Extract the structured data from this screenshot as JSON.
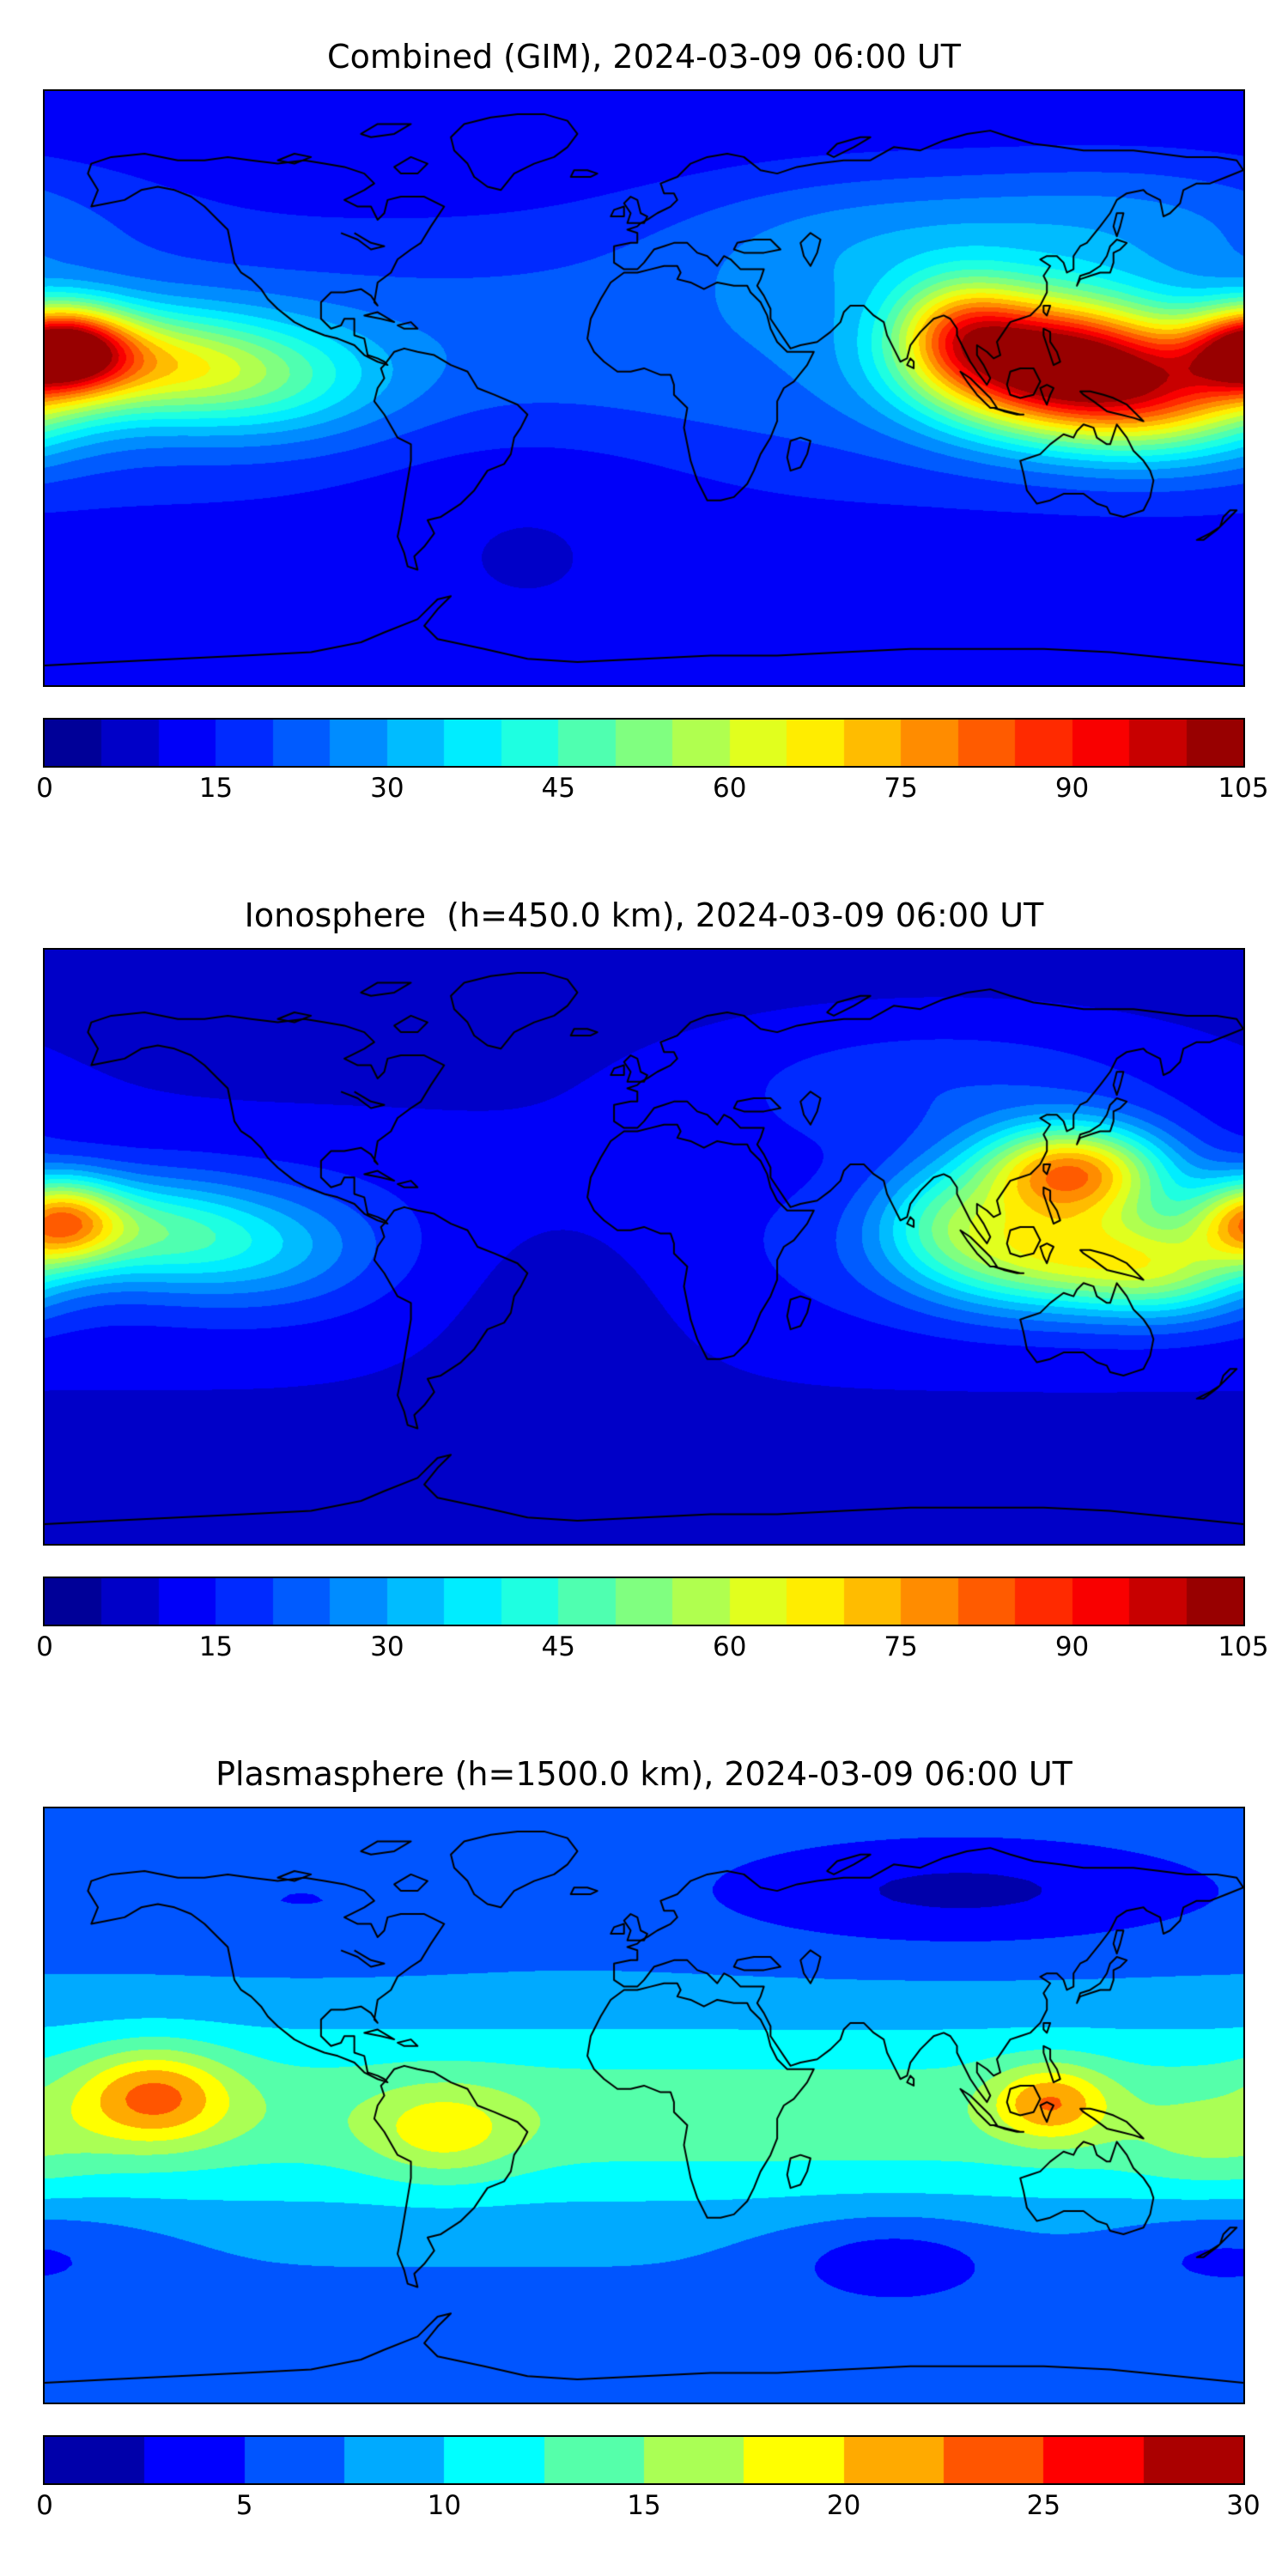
{
  "figure": {
    "background": "#ffffff"
  },
  "chart_data": {
    "type": "heatmap",
    "colormap": "jet",
    "projection": "equirectangular",
    "lon_range": [
      -180,
      180
    ],
    "lat_range": [
      -90,
      90
    ],
    "panels": [
      {
        "id": "combined",
        "title": "Combined (GIM), 2024-03-09 06:00 UT",
        "vmin": 0,
        "vmax": 105,
        "contour_step": 5,
        "colorbar_ticks": [
          0,
          15,
          30,
          45,
          60,
          75,
          90,
          105
        ],
        "field": {
          "base": 10,
          "bands": [
            {
              "lat": 8,
              "amp": 14,
              "slat": 30
            }
          ],
          "blobs": [
            {
              "lon": 120,
              "lat": 8,
              "amp": 78,
              "slon": 26,
              "slat": 14
            },
            {
              "lon": 155,
              "lat": -2,
              "amp": 45,
              "slon": 25,
              "slat": 13
            },
            {
              "lon": 95,
              "lat": 18,
              "amp": 30,
              "slon": 14,
              "slat": 11
            },
            {
              "lon": -175,
              "lat": 12,
              "amp": 68,
              "slon": 14,
              "slat": 9
            },
            {
              "lon": -150,
              "lat": 8,
              "amp": 32,
              "slon": 24,
              "slat": 11
            },
            {
              "lon": -115,
              "lat": 3,
              "amp": 22,
              "slon": 26,
              "slat": 12
            },
            {
              "lon": 70,
              "lat": 45,
              "amp": 12,
              "slon": 45,
              "slat": 16
            },
            {
              "lon": 150,
              "lat": 52,
              "amp": 10,
              "slon": 40,
              "slat": 14
            },
            {
              "lon": -35,
              "lat": -25,
              "amp": -5,
              "slon": 40,
              "slat": 20
            }
          ]
        }
      },
      {
        "id": "ionosphere",
        "title": "Ionosphere  (h=450.0 km), 2024-03-09 06:00 UT",
        "vmin": 0,
        "vmax": 105,
        "contour_step": 5,
        "colorbar_ticks": [
          0,
          15,
          30,
          45,
          60,
          75,
          90,
          105
        ],
        "field": {
          "base": 8,
          "bands": [
            {
              "lat": 0,
              "amp": 8,
              "slat": 26
            }
          ],
          "blobs": [
            {
              "lon": 128,
              "lat": 23,
              "amp": 62,
              "slon": 20,
              "slat": 10
            },
            {
              "lon": 122,
              "lat": -2,
              "amp": 45,
              "slon": 28,
              "slat": 12
            },
            {
              "lon": 158,
              "lat": -8,
              "amp": 25,
              "slon": 18,
              "slat": 10
            },
            {
              "lon": 90,
              "lat": 10,
              "amp": 18,
              "slon": 15,
              "slat": 11
            },
            {
              "lon": -176,
              "lat": 8,
              "amp": 50,
              "slon": 13,
              "slat": 9
            },
            {
              "lon": -150,
              "lat": 5,
              "amp": 26,
              "slon": 22,
              "slat": 11
            },
            {
              "lon": -115,
              "lat": 0,
              "amp": 16,
              "slon": 24,
              "slat": 12
            },
            {
              "lon": -25,
              "lat": -8,
              "amp": -7,
              "slon": 35,
              "slat": 22
            },
            {
              "lon": 90,
              "lat": 50,
              "amp": 10,
              "slon": 50,
              "slat": 14
            }
          ]
        }
      },
      {
        "id": "plasmasphere",
        "title": "Plasmasphere (h=1500.0 km), 2024-03-09 06:00 UT",
        "vmin": 0,
        "vmax": 30,
        "contour_step": 2.5,
        "colorbar_ticks": [
          0,
          5,
          10,
          15,
          20,
          25,
          30
        ],
        "field": {
          "base": 7,
          "bands": [
            {
              "lat": -3,
              "amp": 7,
              "slat": 20
            }
          ],
          "blobs": [
            {
              "lon": -147,
              "lat": 3,
              "amp": 10,
              "slon": 16,
              "slat": 10
            },
            {
              "lon": -60,
              "lat": -8,
              "amp": 5.5,
              "slon": 16,
              "slat": 10
            },
            {
              "lon": 122,
              "lat": 1,
              "amp": 9,
              "slon": 12,
              "slat": 8
            },
            {
              "lon": 170,
              "lat": -12,
              "amp": 2.5,
              "slon": 18,
              "slat": 10
            },
            {
              "lon": 95,
              "lat": 65,
              "amp": -5,
              "slon": 55,
              "slat": 12
            },
            {
              "lon": 75,
              "lat": -47,
              "amp": -4,
              "slon": 25,
              "slat": 10
            },
            {
              "lon": 175,
              "lat": -45,
              "amp": -3,
              "slon": 28,
              "slat": 10
            },
            {
              "lon": -100,
              "lat": 62,
              "amp": -2,
              "slon": 40,
              "slat": 12
            }
          ]
        }
      }
    ]
  }
}
